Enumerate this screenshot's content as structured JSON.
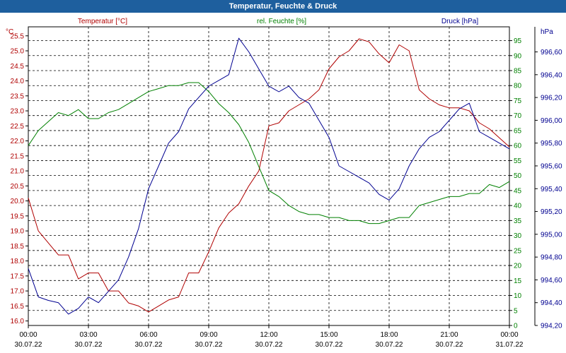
{
  "window": {
    "title": "Temperatur, Feuchte & Druck"
  },
  "colors": {
    "title_bar": "#1e5f9e",
    "temperature": "#b00000",
    "humidity": "#008000",
    "pressure": "#000090",
    "grid": "#000000"
  },
  "chart_data": {
    "type": "line",
    "title": "Temperatur, Feuchte & Druck",
    "grid": true,
    "x_ticks": [
      {
        "hour": 0,
        "time": "00:00",
        "date": "30.07.22"
      },
      {
        "hour": 3,
        "time": "03:00",
        "date": "30.07.22"
      },
      {
        "hour": 6,
        "time": "06:00",
        "date": "30.07.22"
      },
      {
        "hour": 9,
        "time": "09:00",
        "date": "30.07.22"
      },
      {
        "hour": 12,
        "time": "12:00",
        "date": "30.07.22"
      },
      {
        "hour": 15,
        "time": "15:00",
        "date": "30.07.22"
      },
      {
        "hour": 18,
        "time": "18:00",
        "date": "30.07.22"
      },
      {
        "hour": 21,
        "time": "21:00",
        "date": "30.07.22"
      },
      {
        "hour": 24,
        "time": "00:00",
        "date": "31.07.22"
      }
    ],
    "xlim": [
      0,
      24
    ],
    "axes": {
      "temperature": {
        "label": "Temperatur [°C]",
        "unit": "°C",
        "ylim": [
          15.85,
          25.8
        ],
        "ticks": [
          16.0,
          16.5,
          17.0,
          17.5,
          18.0,
          18.5,
          19.0,
          19.5,
          20.0,
          20.5,
          21.0,
          21.5,
          22.0,
          22.5,
          23.0,
          23.5,
          24.0,
          24.5,
          25.0,
          25.5
        ],
        "tick_labels": [
          "16.0",
          "16.5",
          "17.0",
          "17.5",
          "18.0",
          "18.5",
          "19.0",
          "19.5",
          "20.0",
          "20.5",
          "21.0",
          "21.5",
          "22.0",
          "22.5",
          "23.0",
          "23.5",
          "24.0",
          "24.5",
          "25.0",
          "25.5"
        ]
      },
      "humidity": {
        "label": "rel. Feuchte [%]",
        "unit": "%",
        "ylim": [
          0,
          99.6
        ],
        "ticks": [
          0,
          5,
          10,
          15,
          20,
          25,
          30,
          35,
          40,
          45,
          50,
          55,
          60,
          65,
          70,
          75,
          80,
          85,
          90,
          95
        ],
        "tick_labels": [
          "0",
          "5",
          "10",
          "15",
          "20",
          "25",
          "30",
          "35",
          "40",
          "45",
          "50",
          "55",
          "60",
          "65",
          "70",
          "75",
          "80",
          "85",
          "90",
          "95"
        ]
      },
      "pressure": {
        "label": "Druck [hPa]",
        "unit": "hPa",
        "ylim": [
          994.2,
          996.82
        ],
        "ticks": [
          994.2,
          994.4,
          994.6,
          994.8,
          995.0,
          995.2,
          995.4,
          995.6,
          995.8,
          996.0,
          996.2,
          996.4,
          996.6
        ],
        "tick_labels": [
          "994,20",
          "994,40",
          "994,60",
          "994,80",
          "995,00",
          "995,20",
          "995,40",
          "995,60",
          "995,80",
          "996,00",
          "996,20",
          "996,40",
          "996,60"
        ]
      }
    },
    "series": [
      {
        "name": "Temperatur [°C]",
        "axis": "temperature",
        "x": [
          0,
          0.5,
          1,
          1.5,
          2,
          2.5,
          3,
          3.5,
          4,
          4.5,
          5,
          5.5,
          6,
          6.5,
          7,
          7.5,
          8,
          8.5,
          9,
          9.5,
          10,
          10.5,
          11,
          11.5,
          12,
          12.5,
          13,
          13.5,
          14,
          14.5,
          15,
          15.5,
          16,
          16.5,
          17,
          17.5,
          18,
          18.5,
          19,
          19.5,
          20,
          20.5,
          21,
          21.5,
          22,
          22.5,
          23,
          23.5,
          24
        ],
        "values": [
          20.1,
          19.0,
          18.6,
          18.2,
          18.2,
          17.4,
          17.6,
          17.6,
          17.0,
          17.0,
          16.6,
          16.5,
          16.3,
          16.5,
          16.7,
          16.8,
          17.6,
          17.6,
          18.3,
          19.1,
          19.6,
          19.9,
          20.5,
          21.0,
          22.5,
          22.6,
          23.0,
          23.2,
          23.4,
          23.7,
          24.4,
          24.8,
          25.0,
          25.4,
          25.3,
          24.9,
          24.6,
          25.2,
          25.0,
          23.7,
          23.4,
          23.2,
          23.1,
          23.1,
          23.0,
          22.6,
          22.4,
          22.1,
          21.8
        ]
      },
      {
        "name": "rel. Feuchte [%]",
        "axis": "humidity",
        "x": [
          0,
          0.5,
          1,
          1.5,
          2,
          2.5,
          3,
          3.5,
          4,
          4.5,
          5,
          5.5,
          6,
          6.5,
          7,
          7.5,
          8,
          8.5,
          9,
          9.5,
          10,
          10.5,
          11,
          11.5,
          12,
          12.5,
          13,
          13.5,
          14,
          14.5,
          15,
          15.5,
          16,
          16.5,
          17,
          17.5,
          18,
          18.5,
          19,
          19.5,
          20,
          20.5,
          21,
          21.5,
          22,
          22.5,
          23,
          23.5,
          24
        ],
        "values": [
          60,
          65,
          68,
          71,
          70,
          72,
          69,
          69,
          71,
          72,
          74,
          76,
          78,
          79,
          80,
          80,
          81,
          81,
          78,
          74,
          71,
          67,
          61,
          53,
          45,
          43,
          40,
          38,
          37,
          37,
          36,
          36,
          35,
          35,
          34,
          34,
          35,
          36,
          36,
          40,
          41,
          42,
          43,
          43,
          44,
          44,
          47,
          46,
          48
        ]
      },
      {
        "name": "Druck [hPa]",
        "axis": "pressure",
        "x": [
          0,
          0.5,
          1,
          1.5,
          2,
          2.5,
          3,
          3.5,
          4,
          4.5,
          5,
          5.5,
          6,
          6.5,
          7,
          7.5,
          8,
          8.5,
          9,
          9.5,
          10,
          10.5,
          11,
          11.5,
          12,
          12.5,
          13,
          13.5,
          14,
          14.5,
          15,
          15.5,
          16,
          16.5,
          17,
          17.5,
          18,
          18.5,
          19,
          19.5,
          20,
          20.5,
          21,
          21.5,
          22,
          22.5,
          23,
          23.5,
          24
        ],
        "values": [
          994.7,
          994.45,
          994.42,
          994.4,
          994.3,
          994.35,
          994.45,
          994.4,
          994.5,
          994.6,
          994.8,
          995.05,
          995.4,
          995.6,
          995.8,
          995.9,
          996.1,
          996.2,
          996.3,
          996.35,
          996.4,
          996.72,
          996.6,
          996.45,
          996.3,
          996.25,
          996.3,
          996.2,
          996.15,
          996.0,
          995.85,
          995.6,
          995.55,
          995.5,
          995.45,
          995.35,
          995.3,
          995.4,
          995.6,
          995.75,
          995.85,
          995.9,
          996.0,
          996.1,
          996.15,
          995.9,
          995.85,
          995.8,
          995.75
        ]
      }
    ]
  }
}
